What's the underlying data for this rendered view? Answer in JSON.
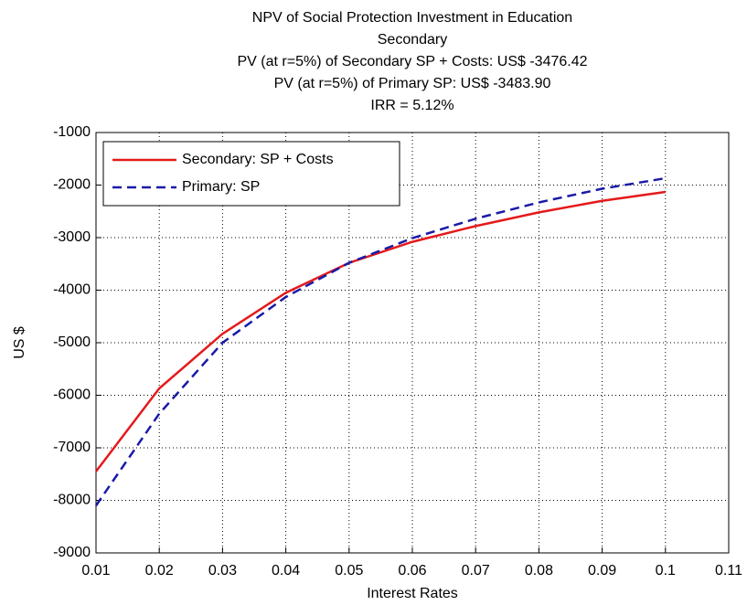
{
  "chart_data": {
    "type": "line",
    "title": "NPV of Social Protection Investment in Education",
    "subtitle": [
      "Secondary",
      "PV (at r=5%) of Secondary SP + Costs:   US$ -3476.42",
      "PV (at r=5%) of Primary SP:  US$ -3483.90",
      "IRR = 5.12%"
    ],
    "x_label": "Interest Rates",
    "y_label": "US $",
    "x": [
      0.01,
      0.02,
      0.03,
      0.04,
      0.05,
      0.06,
      0.07,
      0.08,
      0.09,
      0.1
    ],
    "series": [
      {
        "name": "Secondary:  SP + Costs",
        "color": "#e41a1c",
        "dash": "solid",
        "values": [
          -7450,
          -5870,
          -4830,
          -4050,
          -3480,
          -3080,
          -2780,
          -2520,
          -2300,
          -2130
        ]
      },
      {
        "name": "Primary:  SP",
        "color": "#1a1aa8",
        "dash": "dashed",
        "values": [
          -8100,
          -6350,
          -5000,
          -4130,
          -3480,
          -3010,
          -2640,
          -2330,
          -2070,
          -1870
        ]
      }
    ],
    "xlim": [
      0.01,
      0.11
    ],
    "xticks": [
      0.01,
      0.02,
      0.03,
      0.04,
      0.05,
      0.06,
      0.07,
      0.08,
      0.09,
      0.1,
      0.11
    ],
    "ylim": [
      -9000,
      -1000
    ],
    "yticks": [
      -9000,
      -8000,
      -7000,
      -6000,
      -5000,
      -4000,
      -3000,
      -2000,
      -1000
    ],
    "grid": true,
    "legend": "upper-left"
  }
}
